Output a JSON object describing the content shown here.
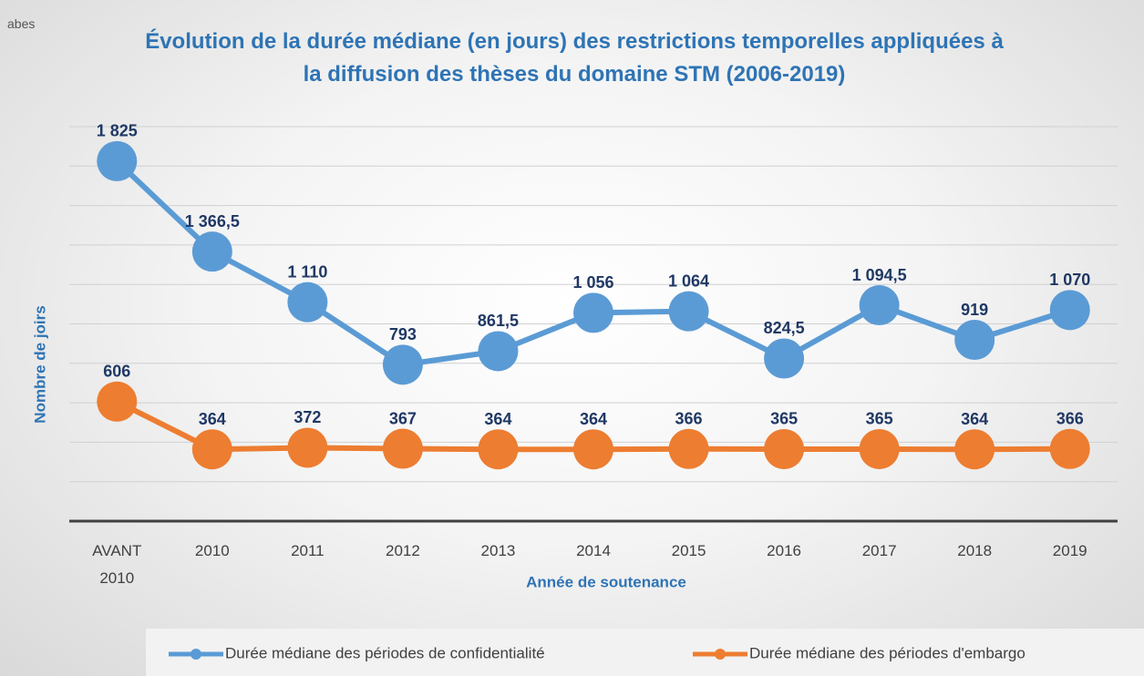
{
  "logo": "abes",
  "chart_data": {
    "type": "line",
    "title": "Évolution de la durée médiane (en jours) des restrictions temporelles appliquées à la diffusion des thèses du domaine STM  (2006-2019)",
    "x_label": "Année de soutenance",
    "y_label": "Nombre de joirs",
    "categories": [
      "AVANT 2010",
      "2010",
      "2011",
      "2012",
      "2013",
      "2014",
      "2015",
      "2016",
      "2017",
      "2018",
      "2019"
    ],
    "series": [
      {
        "name": "Durée médiane des périodes de confidentialité",
        "color": "#5b9bd5",
        "values": [
          1825,
          1366.5,
          1110,
          793,
          861.5,
          1056,
          1064,
          824.5,
          1094.5,
          919,
          1070
        ],
        "value_labels": [
          "1 825",
          "1 366,5",
          "1 110",
          "793",
          "861,5",
          "1 056",
          "1 064",
          "824,5",
          "1 094,5",
          "919",
          "1 070"
        ]
      },
      {
        "name": "Durée médiane des périodes d'embargo",
        "color": "#ed7d31",
        "values": [
          606,
          364,
          372,
          367,
          364,
          364,
          366,
          365,
          365,
          364,
          366
        ]
      }
    ],
    "ylim": [
      0,
      2000
    ],
    "yticks": [
      0,
      200,
      400,
      600,
      800,
      1000,
      1200,
      1400,
      1600,
      1800,
      2000
    ],
    "grid": true,
    "legend": "bottom"
  }
}
